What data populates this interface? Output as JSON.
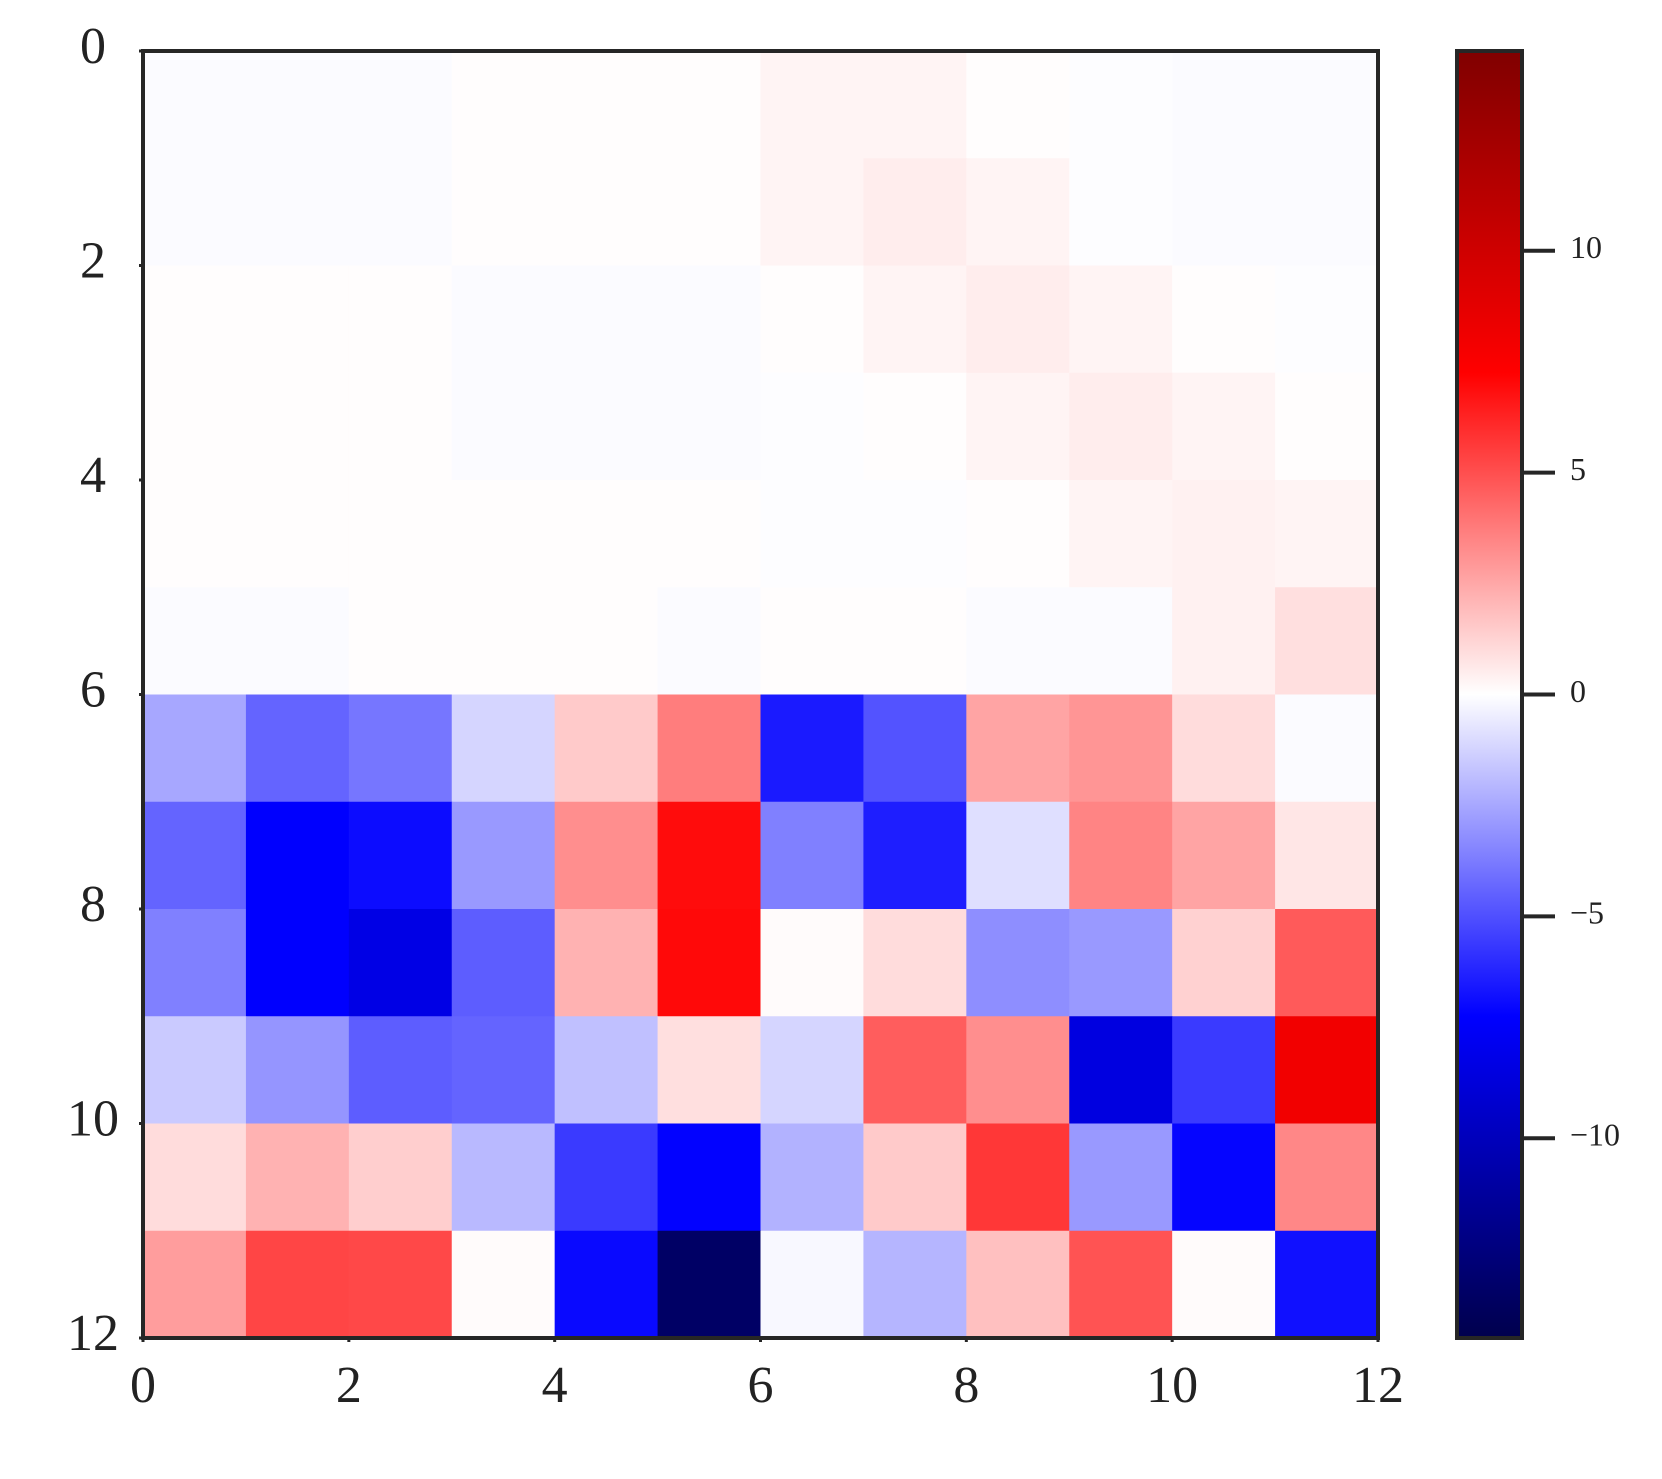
{
  "chart_data": {
    "type": "heatmap",
    "colormap": "seismic",
    "clim": [
      -14.5,
      14.5
    ],
    "xlim": [
      0,
      12
    ],
    "ylim": [
      12,
      0
    ],
    "xticks": [
      0,
      2,
      4,
      6,
      8,
      10,
      12
    ],
    "yticks": [
      0,
      2,
      4,
      6,
      8,
      10,
      12
    ],
    "colorbar_ticks": [
      {
        "value": -10,
        "label": "−10"
      },
      {
        "value": -5,
        "label": "−5"
      },
      0,
      5,
      10
    ],
    "values": [
      [
        -0.1,
        -0.1,
        -0.1,
        0.05,
        0.05,
        0.05,
        0.3,
        0.3,
        0.05,
        -0.05,
        -0.1,
        -0.1
      ],
      [
        -0.1,
        -0.1,
        -0.1,
        0.05,
        0.05,
        0.05,
        0.3,
        0.5,
        0.3,
        -0.05,
        -0.1,
        -0.1
      ],
      [
        0.05,
        0.05,
        0.05,
        -0.1,
        -0.1,
        -0.1,
        0.05,
        0.3,
        0.5,
        0.3,
        0.05,
        -0.05
      ],
      [
        0.05,
        0.05,
        0.05,
        -0.1,
        -0.1,
        -0.1,
        -0.05,
        0.05,
        0.3,
        0.5,
        0.3,
        0.05
      ],
      [
        0.05,
        0.05,
        0.05,
        0.05,
        0.05,
        0.05,
        -0.05,
        -0.05,
        0.05,
        0.3,
        0.4,
        0.3
      ],
      [
        -0.1,
        -0.1,
        0.05,
        0.05,
        0.05,
        -0.1,
        0.05,
        0.05,
        -0.1,
        -0.1,
        0.4,
        0.9
      ],
      [
        -2.5,
        -4.4,
        -3.9,
        -1.2,
        1.5,
        3.7,
        -6.5,
        -4.9,
        2.6,
        3.0,
        1.0,
        -0.1
      ],
      [
        -4.4,
        -7.3,
        -6.9,
        -2.9,
        3.2,
        6.9,
        -3.6,
        -6.4,
        -0.9,
        3.5,
        2.6,
        0.7
      ],
      [
        -3.6,
        -7.3,
        -8.3,
        -4.6,
        2.2,
        7.0,
        0.1,
        1.0,
        -3.2,
        -2.9,
        1.3,
        4.7
      ],
      [
        -1.5,
        -3.0,
        -4.6,
        -4.4,
        -1.8,
        0.9,
        -1.2,
        4.6,
        3.2,
        -8.5,
        -5.6,
        8.0
      ],
      [
        1.0,
        2.2,
        1.4,
        -2.0,
        -5.6,
        -7.2,
        -2.2,
        1.5,
        5.7,
        -2.9,
        -7.1,
        3.4
      ],
      [
        2.8,
        5.3,
        5.2,
        0.1,
        -7.0,
        -13.5,
        -0.2,
        -2.1,
        1.8,
        4.9,
        0.1,
        -6.8
      ]
    ]
  }
}
